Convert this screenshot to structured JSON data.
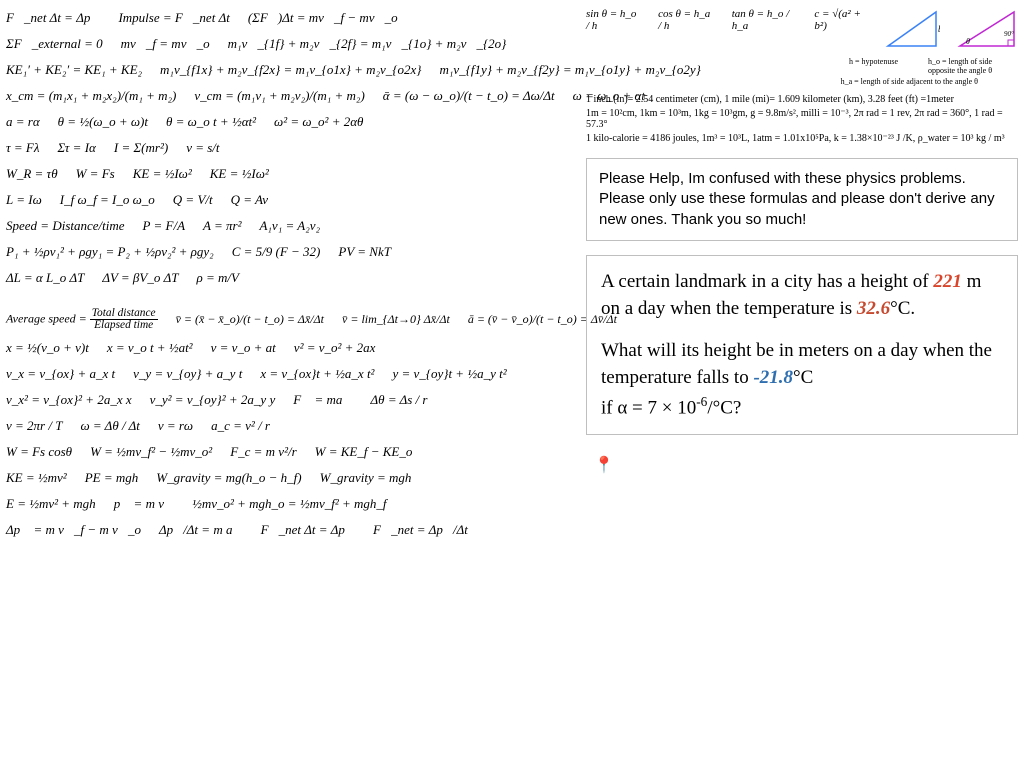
{
  "left": {
    "rows": [
      [
        "F⃗_net Δt = Δp⃗",
        "Impulse = F⃗_net Δt",
        "(ΣF⃗)Δt = mv⃗_f − mv⃗_o",
        ""
      ],
      [
        "ΣF⃗_external = 0",
        "mv⃗_f = mv⃗_o",
        "m₁v⃗_{1f} + m₂v⃗_{2f} = m₁v⃗_{1o} + m₂v⃗_{2o}",
        ""
      ],
      [
        "KE₁′ + KE₂′ = KE₁ + KE₂",
        "m₁v_{f1x} + m₂v_{f2x} = m₁v_{o1x} + m₂v_{o2x}",
        "m₁v_{f1y} + m₂v_{f2y} = m₁v_{o1y} + m₂v_{o2y}",
        ""
      ],
      [
        "x_cm = (m₁x₁ + m₂x₂)/(m₁ + m₂)",
        "v_cm = (m₁v₁ + m₂v₂)/(m₁ + m₂)",
        "ᾱ = (ω − ω_o)/(t − t_o) = Δω/Δt",
        "ω = ω_o + αt"
      ],
      [
        "a = rα",
        "θ = ½(ω_o + ω)t",
        "θ = ω_o t + ½αt²",
        "ω² = ω_o² + 2αθ"
      ],
      [
        "τ = Fλ",
        "Στ = Iα",
        "I = Σ(mr²)",
        "v = s/t"
      ],
      [
        "W_R = τθ",
        "W = Fs",
        "KE = ½Iω²",
        "KE = ½Iω²"
      ],
      [
        "L = Iω",
        "I_f ω_f = I_o ω_o",
        "Q = V/t",
        "Q = Av"
      ],
      [
        "Speed = Distance/time",
        "P = F/A",
        "A = πr²",
        "A₁v₁ = A₂v₂"
      ],
      [
        "P₁ + ½ρv₁² + ρgy₁ = P₂ + ½ρv₂² + ρgy₂",
        "",
        "C = 5/9 (F − 32)",
        "PV = NkT"
      ],
      [
        "ΔL = α L_o ΔT",
        "ΔV = βV_o ΔT",
        "ρ = m/V",
        ""
      ]
    ],
    "avg_row": [
      "Average speed = Total distance / Elapsed time",
      "v̄ = (x̄ − x̄_o)/(t − t_o) = Δx̄/Δt",
      "v̄ = lim_{Δt→0} Δx̄/Δt",
      "ā = (v̄ − v̄_o)/(t − t_o) = Δv̄/Δt"
    ],
    "rows2": [
      [
        "x = ½(v_o + v)t",
        "x = v_o t + ½at²",
        "v = v_o + at",
        "v² = v_o² + 2ax"
      ],
      [
        "v_x = v_{ox} + a_x t",
        "v_y = v_{oy} + a_y t",
        "x = v_{ox}t + ½a_x t²",
        "y = v_{oy}t + ½a_y t²"
      ],
      [
        "v_x² = v_{ox}² + 2a_x x",
        "v_y² = v_{oy}² + 2a_y y",
        "F⃗ = ma⃗",
        "Δθ = Δs / r"
      ],
      [
        "v = 2πr / T",
        "ω = Δθ / Δt",
        "v = rω",
        "a_c = v² / r"
      ],
      [
        "W = Fs cosθ",
        "W = ½mv_f² − ½mv_o²",
        "F_c = m v²/r",
        "W = KE_f − KE_o"
      ],
      [
        "KE = ½mv²",
        "PE = mgh",
        "W_gravity = mg(h_o − h_f)",
        "W_gravity = mgh"
      ],
      [
        "E = ½mv² + mgh",
        "p⃗ = m v⃗",
        "½mv_o² + mgh_o = ½mv_f² + mgh_f",
        ""
      ],
      [
        "Δp⃗ = m v⃗_f − m v⃗_o",
        "Δp⃗/Δt = m a⃗",
        "F⃗_net Δt = Δp⃗",
        "F⃗_net = Δp⃗/Δt"
      ]
    ]
  },
  "right": {
    "trig": {
      "sin": "sin θ = h_o / h",
      "cos": "cos θ = h_a / h",
      "tan": "tan θ = h_o / h_a",
      "pyth": "c = √(a² + b²)",
      "labels": {
        "h": "h = hypotenuse",
        "ho": "h_o = length of side opposite the angle θ",
        "ha": "h_a = length of side adjacent to the angle θ",
        "b": "b",
        "a": "a",
        "ninety": "90°"
      },
      "tri_colors": {
        "blue": "#3b82f6",
        "magenta": "#c026d3"
      }
    },
    "conversions": [
      "1 inch (in)= 2.54 centimeter (cm), 1 mile (mi)= 1.609 kilometer (km), 3.28 feet (ft) =1meter",
      "1m = 10²cm, 1km = 10³m, 1kg = 10³gm, g = 9.8m/s², milli = 10⁻³, 2π rad = 1 rev, 2π rad = 360°, 1 rad = 57.3°",
      "1 kilo-calorie = 4186 joules,  1m³ = 10³L,    1atm = 1.01x10⁵Pa,   k = 1.38×10⁻²³ J /K,    ρ_water = 10³ kg / m³"
    ],
    "instructions": "Please Help, Im confused with these physics problems. Please only use these formulas and please don't derive any new ones. Thank you so much!",
    "problem": {
      "l1a": "A certain landmark in a city has a height of ",
      "l1b": "221",
      "l1c": " m on a day when the temperature is ",
      "l1d": "32.6",
      "l1e": "°C.",
      "l2a": "What will its height be in meters on a day when the temperature falls to ",
      "l2b": "-21.8",
      "l2c": "°C",
      "l3a": "if α = 7 × 10",
      "l3b": "-6",
      "l3c": "/°C?"
    },
    "colors": {
      "instruction_border": "#bfbfbf",
      "accent1": "#d9452b",
      "accent2": "#c64a2f",
      "accent3": "#2f6fb0"
    }
  }
}
